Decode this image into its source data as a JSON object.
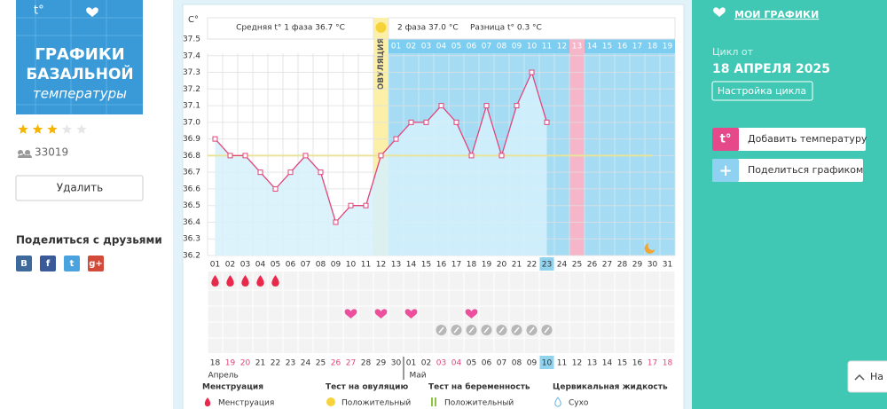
{
  "sidebar": {
    "logo": {
      "mark": "t°",
      "lines": [
        "ГРАФИКИ",
        "БАЗАЛЬНОЙ",
        "температуры"
      ]
    },
    "rating": 3,
    "rating_max": 5,
    "views": "33019",
    "delete_button": "Удалить",
    "share_title": "Поделиться с друзьями",
    "social": [
      "В",
      "f",
      "t",
      "g+"
    ]
  },
  "chart_data": {
    "type": "line",
    "unit_label": "C°",
    "header": {
      "phase1": "Средняя t° 1 фаза 36.7 °C",
      "phase2": "2 фаза 37.0 °C",
      "diff": "Разница t° 0.3 °C"
    },
    "ovulation_label": "ОВУЛЯЦИЯ",
    "ovulation_day": 12,
    "categories": [
      "01",
      "02",
      "03",
      "04",
      "05",
      "06",
      "07",
      "08",
      "09",
      "10",
      "11",
      "12",
      "13",
      "14",
      "15",
      "16",
      "17",
      "18",
      "19",
      "20",
      "21",
      "22",
      "23",
      "24",
      "25",
      "26",
      "27",
      "28",
      "29",
      "30",
      "31"
    ],
    "values": [
      36.9,
      36.8,
      36.8,
      36.7,
      36.6,
      36.7,
      36.8,
      36.7,
      36.4,
      36.5,
      36.5,
      36.8,
      36.9,
      37.0,
      37.0,
      37.1,
      37.0,
      36.8,
      37.1,
      36.8,
      37.1,
      37.3,
      37.0,
      null,
      null,
      null,
      null,
      null,
      null,
      null,
      null
    ],
    "color": "#e0457b",
    "cover_line": 36.8,
    "ylim": [
      36.2,
      37.5
    ],
    "yticks": [
      36.2,
      36.3,
      36.4,
      36.5,
      36.6,
      36.7,
      36.8,
      36.9,
      {
        "value": 37,
        "label": "37.0"
      },
      37.1,
      37.2,
      37.3,
      37.4,
      37.5
    ],
    "grid": true,
    "phase2_start": 13,
    "phase2_days": [
      "01",
      "02",
      "03",
      "04",
      "05",
      "06",
      "07",
      "08",
      "09",
      "10",
      "11",
      "12",
      "13",
      "14",
      "15",
      "16",
      "17",
      "18",
      "19"
    ],
    "highlight_day": 25,
    "today": 23,
    "menstruation": [
      1,
      2,
      3,
      4,
      5
    ],
    "ovulation_tests": [
      10,
      12,
      14,
      18
    ],
    "pregnancy_tests": [
      16,
      17,
      18,
      19,
      20,
      21,
      22,
      23
    ],
    "dates": [
      "18",
      "19",
      "20",
      "21",
      "22",
      "23",
      "24",
      "25",
      "26",
      "27",
      "28",
      "29",
      "30",
      "01",
      "02",
      "03",
      "04",
      "05",
      "06",
      "07",
      "08",
      "09",
      "10",
      "11",
      "12",
      "13",
      "14",
      "15",
      "16",
      "17",
      "18"
    ],
    "weekend_dates": [
      1,
      2,
      8,
      9,
      15,
      16,
      29,
      30
    ],
    "months": [
      {
        "label": "Апрель",
        "day": 1
      },
      {
        "label": "Май",
        "day": 14
      }
    ],
    "legend": [
      {
        "title": "Менструация",
        "item": "Менструация"
      },
      {
        "title": "Тест на овуляцию",
        "item": "Положительный"
      },
      {
        "title": "Тест на беременность",
        "item": "Положительный"
      },
      {
        "title": "Цервикальная жидкость",
        "item": "Сухо"
      }
    ]
  },
  "right_panel": {
    "my_charts": "МОИ ГРАФИКИ",
    "cycle_from": "Цикл от",
    "cycle_date": "18 АПРЕЛЯ 2025",
    "settings_button": "Настройка цикла",
    "add_temp": {
      "icon": "t°",
      "label": "Добавить температуру"
    },
    "share": {
      "icon": "+",
      "label": "Поделиться графиком"
    },
    "scroll_top": "На"
  }
}
